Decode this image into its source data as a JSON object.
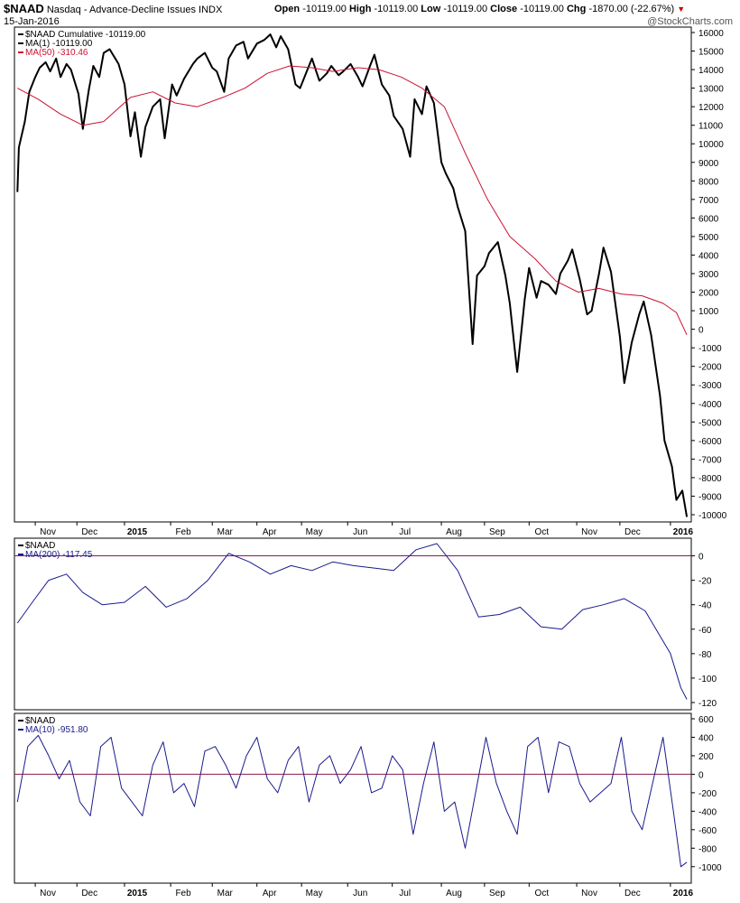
{
  "header": {
    "symbol": "$NAAD",
    "name": "Nasdaq - Advance-Decline Issues",
    "exchange": "INDX",
    "date": "15-Jan-2016",
    "open_label": "Open",
    "open_value": "-10119.00",
    "high_label": "High",
    "high_value": "-10119.00",
    "low_label": "Low",
    "low_value": "-10119.00",
    "close_label": "Close",
    "close_value": "-10119.00",
    "chg_label": "Chg",
    "chg_value": "-1870.00 (-22.67%)",
    "chg_icon": "down-triangle-icon",
    "watermark": "@StockCharts.com"
  },
  "colors": {
    "main_line": "#000000",
    "ma50_line": "#cc1133",
    "indicator_line": "#1a1a8c",
    "zero_line": "#8b1a4a",
    "chg_down": "#cc0000"
  },
  "x_axis": {
    "labels": [
      "Nov",
      "Dec",
      "2015",
      "Feb",
      "Mar",
      "Apr",
      "May",
      "Jun",
      "Jul",
      "Aug",
      "Sep",
      "Oct",
      "Nov",
      "Dec",
      "2016"
    ],
    "bold": [
      "2015",
      "2016"
    ]
  },
  "chart_data": [
    {
      "type": "line",
      "panel": "main",
      "legend_position": "top-left",
      "legend": [
        {
          "text": "$NAAD Cumulative -10119.00",
          "color": "#000000"
        },
        {
          "text": "MA(1) -10119.00",
          "color": "#000000"
        },
        {
          "text": "MA(50) -310.46",
          "color": "#cc1133"
        }
      ],
      "ylim": [
        -10000,
        16000
      ],
      "yticks": [
        16000,
        15000,
        14000,
        13000,
        12000,
        11000,
        10000,
        9000,
        8000,
        7000,
        6000,
        5000,
        4000,
        3000,
        2000,
        1000,
        0,
        -1000,
        -2000,
        -3000,
        -4000,
        -5000,
        -6000,
        -7000,
        -8000,
        -9000,
        -10000
      ],
      "grid": false,
      "series": [
        {
          "name": "$NAAD Cumulative",
          "color": "#000000",
          "x": [
            "2014-10-22",
            "2014-10-23",
            "2014-10-27",
            "2014-10-30",
            "2014-11-03",
            "2014-11-06",
            "2014-11-10",
            "2014-11-13",
            "2014-11-17",
            "2014-11-20",
            "2014-11-24",
            "2014-11-27",
            "2014-12-02",
            "2014-12-05",
            "2014-12-09",
            "2014-12-12",
            "2014-12-16",
            "2014-12-19",
            "2014-12-23",
            "2014-12-29",
            "2015-01-02",
            "2015-01-06",
            "2015-01-09",
            "2015-01-13",
            "2015-01-16",
            "2015-01-21",
            "2015-01-26",
            "2015-01-29",
            "2015-02-03",
            "2015-02-06",
            "2015-02-11",
            "2015-02-17",
            "2015-02-20",
            "2015-02-25",
            "2015-03-02",
            "2015-03-05",
            "2015-03-10",
            "2015-03-13",
            "2015-03-18",
            "2015-03-23",
            "2015-03-26",
            "2015-04-01",
            "2015-04-06",
            "2015-04-10",
            "2015-04-14",
            "2015-04-17",
            "2015-04-22",
            "2015-04-27",
            "2015-04-30",
            "2015-05-05",
            "2015-05-08",
            "2015-05-13",
            "2015-05-18",
            "2015-05-21",
            "2015-05-26",
            "2015-05-29",
            "2015-06-03",
            "2015-06-08",
            "2015-06-11",
            "2015-06-16",
            "2015-06-19",
            "2015-06-24",
            "2015-06-29",
            "2015-07-02",
            "2015-07-08",
            "2015-07-13",
            "2015-07-16",
            "2015-07-21",
            "2015-07-24",
            "2015-07-29",
            "2015-08-03",
            "2015-08-06",
            "2015-08-11",
            "2015-08-14",
            "2015-08-19",
            "2015-08-24",
            "2015-08-27",
            "2015-09-01",
            "2015-09-04",
            "2015-09-10",
            "2015-09-15",
            "2015-09-18",
            "2015-09-23",
            "2015-09-28",
            "2015-10-01",
            "2015-10-06",
            "2015-10-09",
            "2015-10-14",
            "2015-10-19",
            "2015-10-22",
            "2015-10-27",
            "2015-10-30",
            "2015-11-04",
            "2015-11-09",
            "2015-11-12",
            "2015-11-17",
            "2015-11-20",
            "2015-11-25",
            "2015-12-01",
            "2015-12-04",
            "2015-12-09",
            "2015-12-14",
            "2015-12-17",
            "2015-12-22",
            "2015-12-28",
            "2015-12-31",
            "2016-01-05",
            "2016-01-08",
            "2016-01-12",
            "2016-01-15"
          ],
          "y": [
            7400,
            9800,
            11200,
            12800,
            13600,
            14100,
            14400,
            13900,
            14600,
            13600,
            14300,
            14000,
            12700,
            10800,
            12900,
            14200,
            13600,
            14900,
            15100,
            14300,
            13200,
            10400,
            11700,
            9300,
            10900,
            12000,
            12400,
            10300,
            13200,
            12600,
            13500,
            14300,
            14600,
            14900,
            14100,
            13900,
            12800,
            14600,
            15300,
            15500,
            14600,
            15400,
            15600,
            15900,
            15200,
            15800,
            15100,
            13200,
            13000,
            14000,
            14600,
            13400,
            13800,
            14200,
            13700,
            13900,
            14300,
            13600,
            13100,
            14200,
            14800,
            13200,
            12600,
            11500,
            10800,
            9300,
            12400,
            11600,
            13100,
            12200,
            9000,
            8400,
            7600,
            6600,
            5300,
            -800,
            2900,
            3400,
            4100,
            4700,
            2900,
            1400,
            -2300,
            1600,
            3300,
            1700,
            2600,
            2400,
            1900,
            3000,
            3700,
            4300,
            2700,
            800,
            1000,
            3000,
            4400,
            3100,
            -400,
            -2900,
            -700,
            800,
            1500,
            -300,
            -3600,
            -6000,
            -7400,
            -9200,
            -8700,
            -10119
          ]
        },
        {
          "name": "MA(50)",
          "color": "#cc1133",
          "x": [
            "2014-10-22",
            "2014-11-05",
            "2014-11-20",
            "2014-12-05",
            "2014-12-19",
            "2015-01-06",
            "2015-01-21",
            "2015-02-05",
            "2015-02-20",
            "2015-03-09",
            "2015-03-24",
            "2015-04-08",
            "2015-04-23",
            "2015-05-08",
            "2015-05-22",
            "2015-06-08",
            "2015-06-22",
            "2015-07-07",
            "2015-07-21",
            "2015-08-05",
            "2015-08-19",
            "2015-09-03",
            "2015-09-18",
            "2015-10-05",
            "2015-10-19",
            "2015-11-03",
            "2015-11-17",
            "2015-12-02",
            "2015-12-16",
            "2015-12-30",
            "2016-01-08",
            "2016-01-15"
          ],
          "y": [
            13000,
            12400,
            11600,
            11000,
            11200,
            12500,
            12800,
            12200,
            12000,
            12500,
            13000,
            13800,
            14200,
            14100,
            13900,
            14100,
            14000,
            13600,
            13000,
            12000,
            9500,
            7000,
            5000,
            3800,
            2600,
            2000,
            2200,
            1900,
            1800,
            1400,
            900,
            -300
          ]
        }
      ]
    },
    {
      "type": "line",
      "panel": "middle",
      "legend_position": "top-left",
      "legend": [
        {
          "text": "$NAAD",
          "color": "#000000"
        },
        {
          "text": "MA(200) -117.45",
          "color": "#1a1a8c"
        }
      ],
      "ylim": [
        -120,
        10
      ],
      "yticks": [
        0,
        -20,
        -40,
        -60,
        -80,
        -100,
        -120
      ],
      "zero_line": 0,
      "series": [
        {
          "name": "MA(200)",
          "color": "#1a1a8c",
          "x": [
            "2014-10-22",
            "2014-11-01",
            "2014-11-12",
            "2014-11-24",
            "2014-12-05",
            "2014-12-18",
            "2015-01-02",
            "2015-01-16",
            "2015-01-30",
            "2015-02-13",
            "2015-02-27",
            "2015-03-13",
            "2015-03-27",
            "2015-04-10",
            "2015-04-24",
            "2015-05-08",
            "2015-05-22",
            "2015-06-05",
            "2015-06-19",
            "2015-07-02",
            "2015-07-17",
            "2015-07-31",
            "2015-08-14",
            "2015-08-28",
            "2015-09-11",
            "2015-09-25",
            "2015-10-09",
            "2015-10-23",
            "2015-11-06",
            "2015-11-20",
            "2015-12-04",
            "2015-12-18",
            "2016-01-04",
            "2016-01-11",
            "2016-01-15"
          ],
          "y": [
            -55,
            -38,
            -20,
            -15,
            -30,
            -40,
            -38,
            -25,
            -42,
            -35,
            -20,
            2,
            -5,
            -15,
            -8,
            -12,
            -5,
            -8,
            -10,
            -12,
            5,
            10,
            -12,
            -50,
            -48,
            -42,
            -58,
            -60,
            -44,
            -40,
            -35,
            -45,
            -80,
            -108,
            -117.45
          ]
        }
      ]
    },
    {
      "type": "line",
      "panel": "bottom",
      "legend_position": "top-left",
      "legend": [
        {
          "text": "$NAAD",
          "color": "#000000"
        },
        {
          "text": "MA(10) -951.80",
          "color": "#1a1a8c"
        }
      ],
      "ylim": [
        -1100,
        600
      ],
      "yticks": [
        600,
        400,
        200,
        0,
        -200,
        -400,
        -600,
        -800,
        -1000
      ],
      "zero_line": 0,
      "series": [
        {
          "name": "MA(10)",
          "color": "#1a1a8c",
          "x": [
            "2014-10-22",
            "2014-10-29",
            "2014-11-05",
            "2014-11-12",
            "2014-11-19",
            "2014-11-26",
            "2014-12-03",
            "2014-12-10",
            "2014-12-17",
            "2014-12-24",
            "2014-12-31",
            "2015-01-07",
            "2015-01-14",
            "2015-01-21",
            "2015-01-28",
            "2015-02-04",
            "2015-02-11",
            "2015-02-18",
            "2015-02-25",
            "2015-03-04",
            "2015-03-11",
            "2015-03-18",
            "2015-03-25",
            "2015-04-01",
            "2015-04-08",
            "2015-04-15",
            "2015-04-22",
            "2015-04-29",
            "2015-05-06",
            "2015-05-13",
            "2015-05-20",
            "2015-05-27",
            "2015-06-03",
            "2015-06-10",
            "2015-06-17",
            "2015-06-24",
            "2015-07-01",
            "2015-07-08",
            "2015-07-15",
            "2015-07-22",
            "2015-07-29",
            "2015-08-05",
            "2015-08-12",
            "2015-08-19",
            "2015-08-26",
            "2015-09-02",
            "2015-09-09",
            "2015-09-16",
            "2015-09-23",
            "2015-09-30",
            "2015-10-07",
            "2015-10-14",
            "2015-10-21",
            "2015-10-28",
            "2015-11-04",
            "2015-11-11",
            "2015-11-18",
            "2015-11-25",
            "2015-12-02",
            "2015-12-09",
            "2015-12-16",
            "2015-12-23",
            "2015-12-30",
            "2016-01-06",
            "2016-01-11",
            "2016-01-15"
          ],
          "y": [
            -300,
            300,
            420,
            200,
            -50,
            150,
            -300,
            -450,
            300,
            400,
            -150,
            -300,
            -450,
            100,
            350,
            -200,
            -100,
            -350,
            250,
            300,
            100,
            -150,
            200,
            400,
            -50,
            -200,
            150,
            300,
            -300,
            100,
            200,
            -100,
            50,
            300,
            -200,
            -150,
            200,
            50,
            -650,
            -100,
            350,
            -400,
            -300,
            -800,
            -200,
            400,
            -100,
            -400,
            -650,
            300,
            400,
            -200,
            350,
            300,
            -100,
            -300,
            -200,
            -100,
            400,
            -400,
            -600,
            -100,
            400,
            -400,
            -1000,
            -951.8
          ]
        }
      ]
    }
  ]
}
